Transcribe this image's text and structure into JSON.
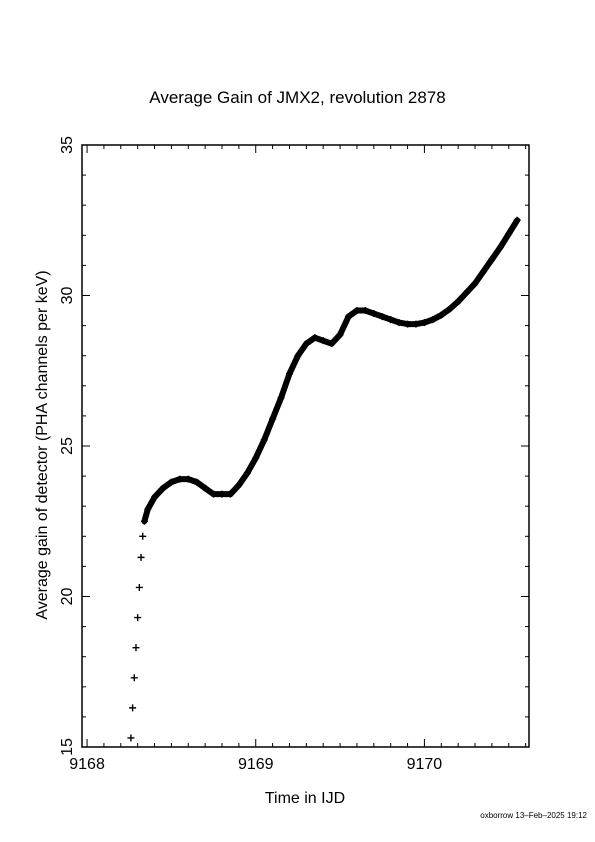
{
  "chart_data": {
    "type": "scatter",
    "title": "Average Gain of JMX2, revolution 2878",
    "xlabel": "Time in IJD",
    "ylabel": "Average gain of detector (PHA channels per keV)",
    "xlim": [
      9167.97,
      9170.62
    ],
    "ylim": [
      15,
      35
    ],
    "x_ticks": [
      "9168",
      "9169",
      "9170"
    ],
    "y_ticks": [
      "15",
      "20",
      "25",
      "30",
      "35"
    ],
    "marker": "plus",
    "grid": false,
    "series": [
      {
        "x": [
          9168.26,
          9168.27,
          9168.28,
          9168.29,
          9168.3,
          9168.31,
          9168.32,
          9168.33,
          9168.34,
          9168.36,
          9168.4,
          9168.45,
          9168.5,
          9168.55,
          9168.6,
          9168.65,
          9168.7,
          9168.75,
          9168.8,
          9168.85,
          9168.9,
          9168.95,
          9169.0,
          9169.05,
          9169.1,
          9169.15,
          9169.2,
          9169.25,
          9169.3,
          9169.35,
          9169.4,
          9169.45,
          9169.5,
          9169.55,
          9169.6,
          9169.65,
          9169.7,
          9169.75,
          9169.8,
          9169.85,
          9169.9,
          9169.95,
          9170.0,
          9170.05,
          9170.1,
          9170.15,
          9170.2,
          9170.25,
          9170.3,
          9170.35,
          9170.4,
          9170.45,
          9170.5,
          9170.55
        ],
        "y": [
          15.3,
          16.3,
          17.3,
          18.3,
          19.3,
          20.3,
          21.3,
          22.0,
          22.5,
          22.9,
          23.3,
          23.6,
          23.8,
          23.9,
          23.9,
          23.8,
          23.6,
          23.4,
          23.4,
          23.4,
          23.7,
          24.1,
          24.6,
          25.2,
          25.9,
          26.6,
          27.4,
          28.0,
          28.4,
          28.6,
          28.5,
          28.4,
          28.7,
          29.3,
          29.5,
          29.5,
          29.4,
          29.3,
          29.2,
          29.1,
          29.05,
          29.05,
          29.1,
          29.2,
          29.35,
          29.55,
          29.8,
          30.1,
          30.4,
          30.8,
          31.2,
          31.6,
          32.05,
          32.5
        ]
      }
    ]
  },
  "footer_text": "oxborrow 13–Feb–2025 19:12"
}
